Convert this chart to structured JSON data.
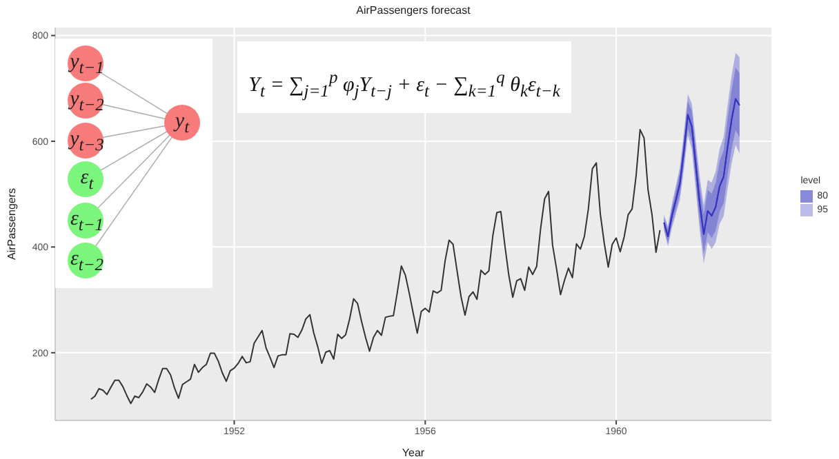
{
  "chart_data": {
    "type": "line",
    "title": "AirPassengers forecast",
    "xlabel": "Year",
    "ylabel": "AirPassengers",
    "legend_title": "level",
    "xlim": [
      "1948-04",
      "1963-04"
    ],
    "xticks": [
      "1952",
      "1956",
      "1960"
    ],
    "ylim": [
      72,
      815
    ],
    "yticks": [
      200,
      400,
      600,
      800
    ],
    "grid": true,
    "legend": "right",
    "annotations": [
      "y$_{t−1}$",
      "y$_{t−2}$",
      "y$_{t−3}$",
      "ε$_{t}$",
      "ε$_{t−1}$",
      "ε$_{t−2}$",
      "y$_{t}$",
      "Y$_{t}$ = ∑$_{j=1}$$^{p}$ φ$_{j}$Y$_{t−j}$ + ε$_{t}$ − ∑$_{k=1}$$^{q}$ θ$_{k}$ε$_{t−k}$"
    ],
    "series": [
      {
        "color": "#333333",
        "x": [
          "1949-01",
          "1949-02",
          "1949-03",
          "1949-04",
          "1949-05",
          "1949-06",
          "1949-07",
          "1949-08",
          "1949-09",
          "1949-10",
          "1949-11",
          "1949-12",
          "1950-01",
          "1950-02",
          "1950-03",
          "1950-04",
          "1950-05",
          "1950-06",
          "1950-07",
          "1950-08",
          "1950-09",
          "1950-10",
          "1950-11",
          "1950-12",
          "1951-01",
          "1951-02",
          "1951-03",
          "1951-04",
          "1951-05",
          "1951-06",
          "1951-07",
          "1951-08",
          "1951-09",
          "1951-10",
          "1951-11",
          "1951-12",
          "1952-01",
          "1952-02",
          "1952-03",
          "1952-04",
          "1952-05",
          "1952-06",
          "1952-07",
          "1952-08",
          "1952-09",
          "1952-10",
          "1952-11",
          "1952-12",
          "1953-01",
          "1953-02",
          "1953-03",
          "1953-04",
          "1953-05",
          "1953-06",
          "1953-07",
          "1953-08",
          "1953-09",
          "1953-10",
          "1953-11",
          "1953-12",
          "1954-01",
          "1954-02",
          "1954-03",
          "1954-04",
          "1954-05",
          "1954-06",
          "1954-07",
          "1954-08",
          "1954-09",
          "1954-10",
          "1954-11",
          "1954-12",
          "1955-01",
          "1955-02",
          "1955-03",
          "1955-04",
          "1955-05",
          "1955-06",
          "1955-07",
          "1955-08",
          "1955-09",
          "1955-10",
          "1955-11",
          "1955-12",
          "1956-01",
          "1956-02",
          "1956-03",
          "1956-04",
          "1956-05",
          "1956-06",
          "1956-07",
          "1956-08",
          "1956-09",
          "1956-10",
          "1956-11",
          "1956-12",
          "1957-01",
          "1957-02",
          "1957-03",
          "1957-04",
          "1957-05",
          "1957-06",
          "1957-07",
          "1957-08",
          "1957-09",
          "1957-10",
          "1957-11",
          "1957-12",
          "1958-01",
          "1958-02",
          "1958-03",
          "1958-04",
          "1958-05",
          "1958-06",
          "1958-07",
          "1958-08",
          "1958-09",
          "1958-10",
          "1958-11",
          "1958-12",
          "1959-01",
          "1959-02",
          "1959-03",
          "1959-04",
          "1959-05",
          "1959-06",
          "1959-07",
          "1959-08",
          "1959-09",
          "1959-10",
          "1959-11",
          "1959-12",
          "1960-01",
          "1960-02",
          "1960-03",
          "1960-04",
          "1960-05",
          "1960-06",
          "1960-07",
          "1960-08",
          "1960-09",
          "1960-10",
          "1960-11",
          "1960-12"
        ],
        "values": [
          112,
          118,
          132,
          129,
          121,
          135,
          148,
          148,
          136,
          119,
          104,
          118,
          115,
          126,
          141,
          135,
          125,
          149,
          170,
          170,
          158,
          133,
          114,
          140,
          145,
          150,
          178,
          163,
          172,
          178,
          199,
          199,
          184,
          162,
          146,
          166,
          171,
          180,
          193,
          181,
          183,
          218,
          230,
          242,
          209,
          191,
          172,
          194,
          196,
          196,
          236,
          235,
          229,
          243,
          264,
          272,
          237,
          211,
          180,
          201,
          204,
          188,
          235,
          227,
          234,
          264,
          302,
          293,
          259,
          229,
          203,
          229,
          242,
          233,
          267,
          269,
          270,
          315,
          364,
          347,
          312,
          274,
          237,
          278,
          284,
          277,
          317,
          313,
          318,
          374,
          413,
          405,
          355,
          306,
          271,
          306,
          315,
          301,
          356,
          348,
          355,
          422,
          465,
          467,
          404,
          347,
          305,
          336,
          340,
          318,
          362,
          348,
          363,
          435,
          491,
          505,
          404,
          359,
          310,
          337,
          360,
          342,
          406,
          396,
          420,
          472,
          548,
          559,
          463,
          407,
          362,
          405,
          417,
          391,
          419,
          461,
          472,
          535,
          622,
          606,
          508,
          461,
          390,
          432
        ]
      },
      {
        "type": "line",
        "name": "95",
        "color": "#4040c8",
        "x": [
          "1961-01",
          "1961-02",
          "1961-03",
          "1961-04",
          "1961-05",
          "1961-06",
          "1961-07",
          "1961-08",
          "1961-09",
          "1961-10",
          "1961-11",
          "1961-12",
          "1962-01",
          "1962-02",
          "1962-03",
          "1962-04",
          "1962-05",
          "1962-06",
          "1962-07",
          "1962-08"
        ],
        "values": [
          446,
          420,
          459,
          489,
          520,
          581,
          650,
          628,
          555,
          481,
          424,
          468,
          459,
          476,
          515,
          533,
          589,
          641,
          680,
          668
        ],
        "lower": [
          431,
          401,
          436,
          462,
          489,
          546,
          611,
          585,
          508,
          430,
          369,
          409,
          396,
          409,
          444,
          458,
          510,
          558,
          593,
          577
        ],
        "upper": [
          461,
          439,
          482,
          516,
          551,
          616,
          689,
          671,
          602,
          532,
          479,
          527,
          522,
          543,
          586,
          608,
          668,
          724,
          767,
          759
        ]
      },
      {
        "type": "line",
        "name": "80",
        "color": "#3434c0",
        "x": [
          "1961-01",
          "1961-02",
          "1961-03",
          "1961-04",
          "1961-05",
          "1961-06",
          "1961-07",
          "1961-08",
          "1961-09",
          "1961-10",
          "1961-11",
          "1961-12",
          "1962-01",
          "1962-02",
          "1962-03",
          "1962-04",
          "1962-05",
          "1962-06",
          "1962-07",
          "1962-08"
        ],
        "values": [
          446,
          420,
          459,
          489,
          520,
          581,
          650,
          628,
          555,
          481,
          424,
          468,
          459,
          476,
          515,
          533,
          589,
          641,
          680,
          668
        ],
        "lower": [
          436,
          407,
          444,
          471,
          499,
          557,
          624,
          599,
          523,
          447,
          387,
          428,
          417,
          431,
          467,
          483,
          536,
          585,
          621,
          607
        ],
        "upper": [
          456,
          433,
          474,
          507,
          541,
          605,
          676,
          657,
          587,
          515,
          461,
          508,
          501,
          521,
          563,
          583,
          642,
          697,
          739,
          729
        ]
      }
    ]
  }
}
